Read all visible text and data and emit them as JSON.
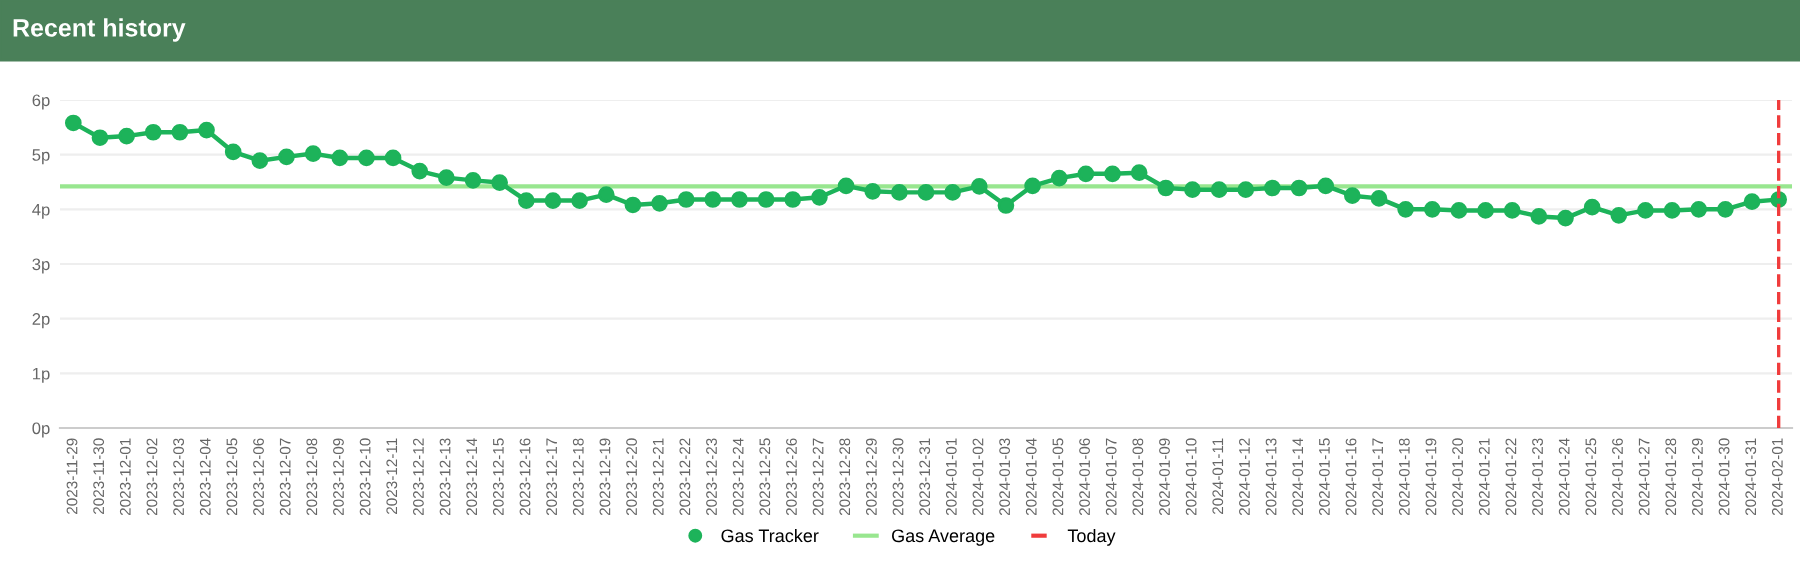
{
  "chart_data": {
    "type": "line",
    "title": "Recent history",
    "categories": [
      "2023-11-29",
      "2023-11-30",
      "2023-12-01",
      "2023-12-02",
      "2023-12-03",
      "2023-12-04",
      "2023-12-05",
      "2023-12-06",
      "2023-12-07",
      "2023-12-08",
      "2023-12-09",
      "2023-12-10",
      "2023-12-11",
      "2023-12-12",
      "2023-12-13",
      "2023-12-14",
      "2023-12-15",
      "2023-12-16",
      "2023-12-17",
      "2023-12-18",
      "2023-12-19",
      "2023-12-20",
      "2023-12-21",
      "2023-12-22",
      "2023-12-23",
      "2023-12-24",
      "2023-12-25",
      "2023-12-26",
      "2023-12-27",
      "2023-12-28",
      "2023-12-29",
      "2023-12-30",
      "2023-12-31",
      "2024-01-01",
      "2024-01-02",
      "2024-01-03",
      "2024-01-04",
      "2024-01-05",
      "2024-01-06",
      "2024-01-07",
      "2024-01-08",
      "2024-01-09",
      "2024-01-10",
      "2024-01-11",
      "2024-01-12",
      "2024-01-13",
      "2024-01-14",
      "2024-01-15",
      "2024-01-16",
      "2024-01-17",
      "2024-01-18",
      "2024-01-19",
      "2024-01-20",
      "2024-01-21",
      "2024-01-22",
      "2024-01-23",
      "2024-01-24",
      "2024-01-25",
      "2024-01-26",
      "2024-01-27",
      "2024-01-28",
      "2024-01-29",
      "2024-01-30",
      "2024-01-31",
      "2024-02-01"
    ],
    "series": [
      {
        "name": "Gas Tracker",
        "color": "#1db35a",
        "values": [
          5.58,
          5.31,
          5.34,
          5.41,
          5.41,
          5.45,
          5.05,
          4.89,
          4.96,
          5.02,
          4.94,
          4.94,
          4.94,
          4.7,
          4.58,
          4.53,
          4.49,
          4.16,
          4.16,
          4.16,
          4.27,
          4.08,
          4.11,
          4.18,
          4.18,
          4.18,
          4.18,
          4.18,
          4.22,
          4.43,
          4.33,
          4.31,
          4.31,
          4.31,
          4.42,
          4.07,
          4.43,
          4.57,
          4.65,
          4.65,
          4.67,
          4.39,
          4.36,
          4.36,
          4.36,
          4.39,
          4.39,
          4.43,
          4.25,
          4.2,
          4.0,
          4.0,
          3.98,
          3.98,
          3.98,
          3.87,
          3.84,
          4.04,
          3.89,
          3.98,
          3.98,
          4.0,
          4.0,
          4.14,
          4.18
        ]
      }
    ],
    "ref_lines": [
      {
        "axis": "y",
        "value": 4.42,
        "label": "Gas Average",
        "color": "#98e68f",
        "line_style": "solid"
      },
      {
        "axis": "x",
        "value": "2024-02-01",
        "label": "Today",
        "color": "#f03c3c",
        "line_style": "dashed"
      }
    ],
    "ylim": [
      0,
      6
    ],
    "yticks": [
      {
        "value": 0,
        "label": "0p"
      },
      {
        "value": 1,
        "label": "1p"
      },
      {
        "value": 2,
        "label": "2p"
      },
      {
        "value": 3,
        "label": "3p"
      },
      {
        "value": 4,
        "label": "4p"
      },
      {
        "value": 5,
        "label": "5p"
      },
      {
        "value": 6,
        "label": "6p"
      }
    ],
    "grid": "y",
    "legend": "bottom",
    "marker": "circle",
    "line_style": "solid"
  }
}
